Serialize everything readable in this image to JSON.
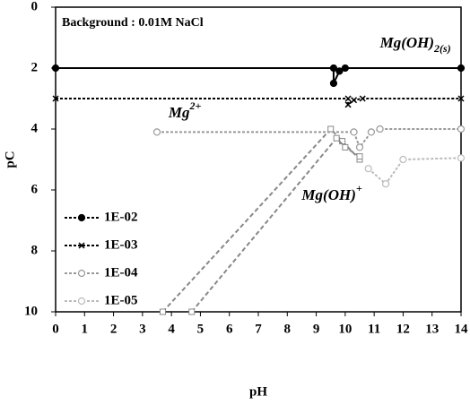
{
  "chart_data": {
    "type": "line",
    "x_label": "pH",
    "y_label": "pC",
    "xlim": [
      0,
      14
    ],
    "xticks": [
      0,
      1,
      2,
      3,
      4,
      5,
      6,
      7,
      8,
      9,
      10,
      11,
      12,
      13,
      14
    ],
    "ylim": [
      0,
      10
    ],
    "yticks": [
      0,
      2,
      4,
      6,
      8,
      10
    ],
    "y_reversed": true,
    "background_note": "Background : 0.01M NaCl",
    "annotations": [
      {
        "text": "Mg(OH)",
        "sub": "2(s)",
        "x": 11.2,
        "y": 1.2
      },
      {
        "text": "Mg",
        "sup": "2+",
        "x": 3.9,
        "y": 3.5
      },
      {
        "text": "Mg(OH)",
        "sup": "+",
        "x": 8.5,
        "y": 6.2
      }
    ],
    "legend": "left",
    "series": [
      {
        "name": "1E-02",
        "color": "#000000",
        "marker": "filled-circle",
        "x": [
          0,
          9.6,
          9.6,
          9.8,
          10,
          14
        ],
        "values": [
          2,
          2,
          2.5,
          2.1,
          2,
          2
        ],
        "complex_x": [
          3.7,
          9.5,
          9.9,
          10.5
        ],
        "complex_values": [
          10,
          4,
          4.4,
          5
        ]
      },
      {
        "name": "1E-03",
        "color": "#000000",
        "marker": "cross",
        "x": [
          0,
          10.1,
          10.1,
          10.3,
          10.6,
          14
        ],
        "values": [
          3,
          3,
          3.2,
          3.05,
          3,
          3
        ],
        "complex_x": [
          4.7,
          9.7,
          10,
          10.5
        ],
        "complex_values": [
          10,
          4.3,
          4.6,
          4.9
        ]
      },
      {
        "name": "1E-04",
        "color": "#999999",
        "marker": "open-circle",
        "x": [
          3.5,
          10.3,
          10.5,
          10.9,
          11.2,
          14
        ],
        "values": [
          4.1,
          4.1,
          4.6,
          4.1,
          4,
          4
        ]
      },
      {
        "name": "1E-05",
        "color": "#bbbbbb",
        "marker": "open-circle",
        "x": [
          10.8,
          11.4,
          12,
          14
        ],
        "values": [
          5.3,
          5.8,
          5,
          4.95
        ]
      }
    ]
  }
}
